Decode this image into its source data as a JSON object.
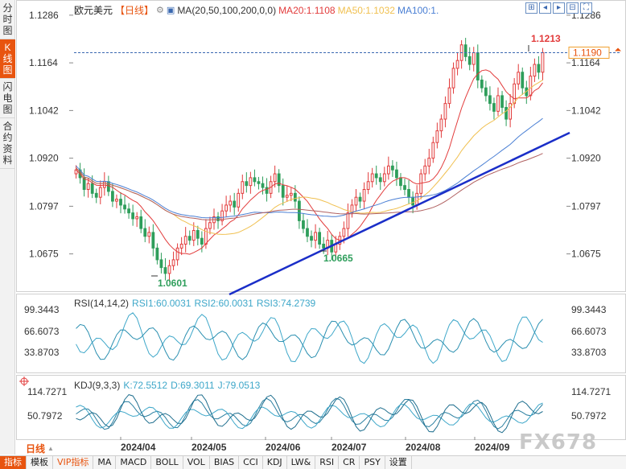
{
  "left_nav": [
    {
      "label": "分时图",
      "chars": [
        "分",
        "时",
        "图"
      ],
      "active": false
    },
    {
      "label": "K线图",
      "chars": [
        "K",
        "线",
        "图"
      ],
      "active": true
    },
    {
      "label": "闪电图",
      "chars": [
        "闪",
        "电",
        "图"
      ],
      "active": false
    },
    {
      "label": "合约资料",
      "chars": [
        "合",
        "约",
        "资",
        "料"
      ],
      "active": false
    }
  ],
  "header": {
    "title": "欧元美元",
    "period": "【日线】",
    "ma_label": "MA(20,50,100,200,0,0)",
    "ma20": "MA20:1.1108",
    "ma50": "MA50:1.1032",
    "ma100": "MA100:1."
  },
  "toolbar": {
    "buttons": [
      {
        "name": "zoom-in-icon",
        "glyph": "⊞"
      },
      {
        "name": "move-left-icon",
        "glyph": "◂"
      },
      {
        "name": "move-right-icon",
        "glyph": "▸"
      },
      {
        "name": "zoom-out-icon",
        "glyph": "⊟"
      },
      {
        "name": "fullscreen-icon",
        "glyph": "⛶"
      }
    ]
  },
  "colors": {
    "up": "#e23b3b",
    "down": "#2e9e5b",
    "ma20": "#e23b3b",
    "ma50": "#f0c050",
    "ma100": "#4a7fd4",
    "ma200": "#b06060",
    "trend": "#1a2ec8",
    "accent": "#e8540f",
    "rsi": "#3ea7c9"
  },
  "price_axis": {
    "ticks_left": [
      "1.1286",
      "1.1164",
      "1.1042",
      "1.0920",
      "1.0797",
      "1.0675"
    ],
    "ticks_right": [
      "1.1286",
      "1.1164",
      "1.1042",
      "1.0920",
      "1.0797",
      "1.0675"
    ],
    "current_price": "1.1190"
  },
  "annotations": {
    "high": "1.1213",
    "low1": "1.0601",
    "low2": "1.0665"
  },
  "rsi": {
    "label": "RSI(14,14,2)",
    "rsi1": "RSI1:60.0031",
    "rsi2": "RSI2:60.0031",
    "rsi3": "RSI3:74.2739",
    "ticks": [
      "99.3443",
      "66.6073",
      "33.8703"
    ]
  },
  "kdj": {
    "label": "KDJ(9,3,3)",
    "k": "K:72.5512",
    "d": "D:69.3011",
    "j": "J:79.0513",
    "ticks": [
      "114.7271",
      "50.7972"
    ]
  },
  "x_axis": {
    "labels": [
      "2024/04",
      "2024/05",
      "2024/06",
      "2024/07",
      "2024/08",
      "2024/09"
    ]
  },
  "period_selector": {
    "label": "日线",
    "arrow": "▲"
  },
  "bottom_tabs": [
    {
      "label": "指标",
      "active": true,
      "vip": false
    },
    {
      "label": "模板",
      "active": false,
      "vip": false
    },
    {
      "label": "VIP指标",
      "active": false,
      "vip": true
    },
    {
      "label": "MA",
      "active": false,
      "vip": false
    },
    {
      "label": "MACD",
      "active": false,
      "vip": false
    },
    {
      "label": "BOLL",
      "active": false,
      "vip": false
    },
    {
      "label": "VOL",
      "active": false,
      "vip": false
    },
    {
      "label": "BIAS",
      "active": false,
      "vip": false
    },
    {
      "label": "CCI",
      "active": false,
      "vip": false
    },
    {
      "label": "KDJ",
      "active": false,
      "vip": false
    },
    {
      "label": "LW&",
      "active": false,
      "vip": false
    },
    {
      "label": "RSI",
      "active": false,
      "vip": false
    },
    {
      "label": "CR",
      "active": false,
      "vip": false
    },
    {
      "label": "PSY",
      "active": false,
      "vip": false
    },
    {
      "label": "设置",
      "active": false,
      "vip": false
    }
  ],
  "watermark": "FX678",
  "chart_data": {
    "type": "candlestick",
    "y_range": [
      1.0601,
      1.1286
    ],
    "candles_close": [
      1.089,
      1.087,
      1.084,
      1.0855,
      1.083,
      1.082,
      1.0845,
      1.086,
      1.0835,
      1.081,
      1.0815,
      1.08,
      1.079,
      1.078,
      1.0765,
      1.077,
      1.074,
      1.072,
      1.073,
      1.069,
      1.066,
      1.064,
      1.0625,
      1.0645,
      1.066,
      1.069,
      1.07,
      1.072,
      1.071,
      1.0735,
      1.0715,
      1.07,
      1.074,
      1.0755,
      1.077,
      1.076,
      1.0785,
      1.08,
      1.081,
      1.0795,
      1.083,
      1.086,
      1.085,
      1.087,
      1.086,
      1.0855,
      1.0845,
      1.083,
      1.086,
      1.088,
      1.085,
      1.082,
      1.0825,
      1.083,
      1.081,
      1.076,
      1.074,
      1.072,
      1.071,
      1.073,
      1.07,
      1.069,
      1.071,
      1.068,
      1.07,
      1.072,
      1.074,
      1.078,
      1.08,
      1.082,
      1.081,
      1.084,
      1.086,
      1.088,
      1.087,
      1.086,
      1.088,
      1.09,
      1.089,
      1.087,
      1.085,
      1.084,
      1.082,
      1.08,
      1.083,
      1.088,
      1.09,
      1.092,
      1.096,
      1.099,
      1.102,
      1.106,
      1.11,
      1.115,
      1.117,
      1.121,
      1.118,
      1.116,
      1.119,
      1.112,
      1.11,
      1.108,
      1.106,
      1.104,
      1.108,
      1.105,
      1.102,
      1.106,
      1.111,
      1.114,
      1.11,
      1.108,
      1.113,
      1.116,
      1.114,
      1.119
    ]
  }
}
